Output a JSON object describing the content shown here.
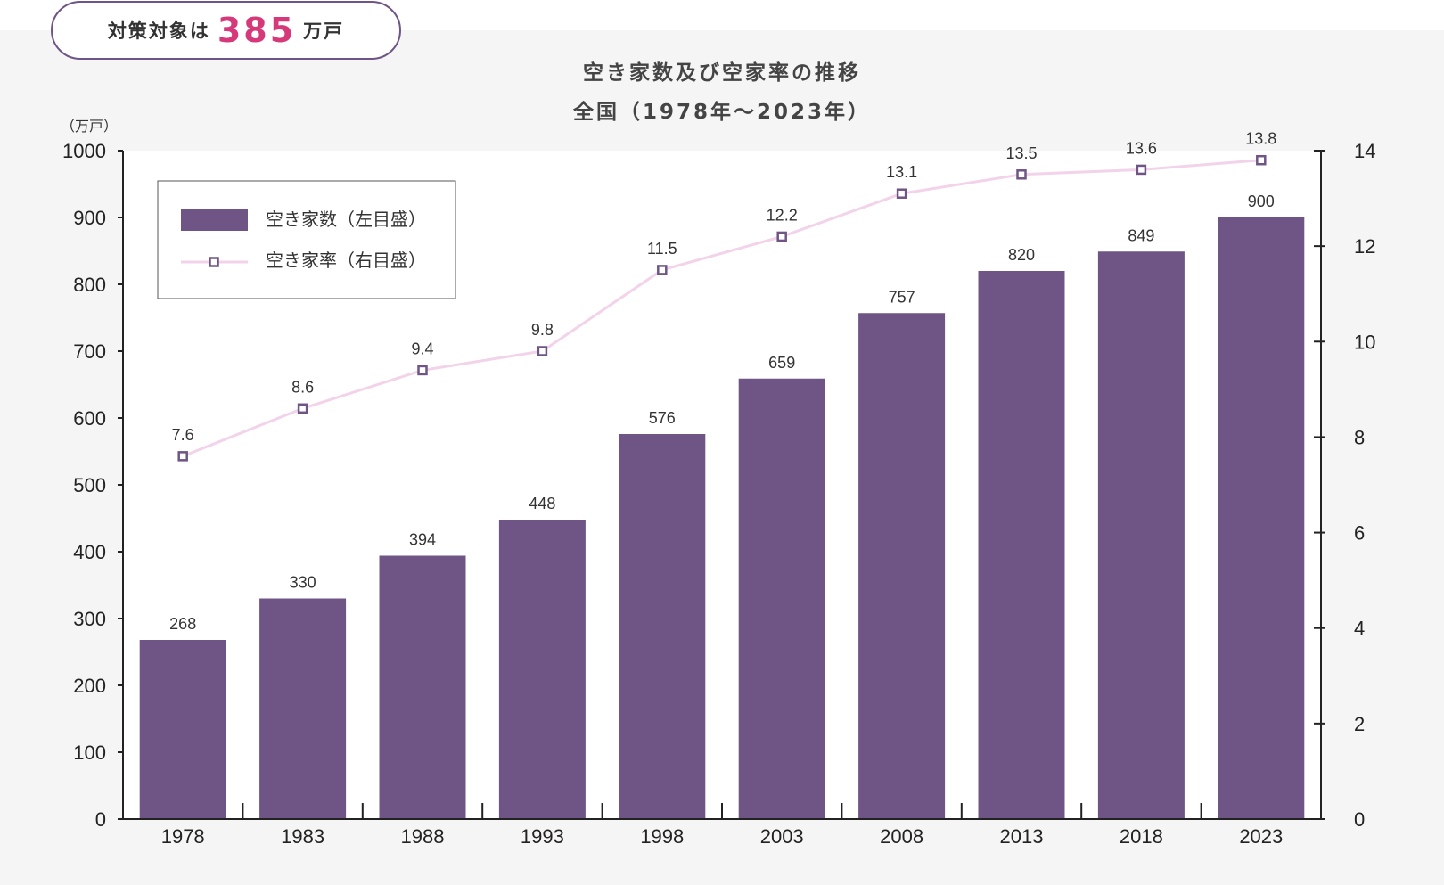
{
  "badge": {
    "prefix": "対策対象は",
    "number": "385",
    "unit": "万戸"
  },
  "colors": {
    "bar": "#6f5585",
    "line": "#f2d3ea",
    "marker": "#6f5585",
    "badge_number": "#d6397a",
    "panel": "#f5f5f5"
  },
  "chart_data": {
    "type": "bar",
    "title": "空き家数及び空家率の推移",
    "subtitle": "全国（1978年～2023年）",
    "y_unit": "（万戸）",
    "categories": [
      "1978",
      "1983",
      "1988",
      "1993",
      "1998",
      "2003",
      "2008",
      "2013",
      "2018",
      "2023"
    ],
    "series": [
      {
        "name": "空き家数（左目盛）",
        "type": "bar",
        "axis": "left",
        "values": [
          268,
          330,
          394,
          448,
          576,
          659,
          757,
          820,
          849,
          900
        ],
        "labels": [
          "268",
          "330",
          "394",
          "448",
          "576",
          "659",
          "757",
          "820",
          "849",
          "900"
        ]
      },
      {
        "name": "空き家率（右目盛）",
        "type": "line",
        "axis": "right",
        "values": [
          7.6,
          8.6,
          9.4,
          9.8,
          11.5,
          12.2,
          13.1,
          13.5,
          13.6,
          13.8
        ],
        "labels": [
          "7.6",
          "8.6",
          "9.4",
          "9.8",
          "11.5",
          "12.2",
          "13.1",
          "13.5",
          "13.6",
          "13.8"
        ]
      }
    ],
    "ylim": [
      0,
      1000
    ],
    "y_ticks": [
      "0",
      "100",
      "200",
      "300",
      "400",
      "500",
      "600",
      "700",
      "800",
      "900",
      "1000"
    ],
    "y2lim": [
      0,
      14
    ],
    "y2_ticks": [
      "0",
      "2",
      "4",
      "6",
      "8",
      "10",
      "12",
      "14"
    ],
    "grid": false,
    "legend_position": "top-left"
  }
}
